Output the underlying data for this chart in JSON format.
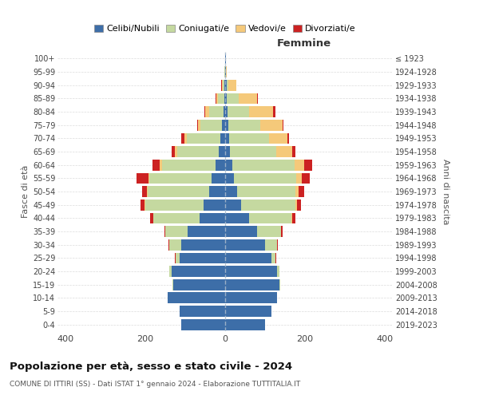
{
  "age_groups": [
    "0-4",
    "5-9",
    "10-14",
    "15-19",
    "20-24",
    "25-29",
    "30-34",
    "35-39",
    "40-44",
    "45-49",
    "50-54",
    "55-59",
    "60-64",
    "65-69",
    "70-74",
    "75-79",
    "80-84",
    "85-89",
    "90-94",
    "95-99",
    "100+"
  ],
  "birth_years": [
    "2019-2023",
    "2014-2018",
    "2009-2013",
    "2004-2008",
    "1999-2003",
    "1994-1998",
    "1989-1993",
    "1984-1988",
    "1979-1983",
    "1974-1978",
    "1969-1973",
    "1964-1968",
    "1959-1963",
    "1954-1958",
    "1949-1953",
    "1944-1948",
    "1939-1943",
    "1934-1938",
    "1929-1933",
    "1924-1928",
    "≤ 1923"
  ],
  "colors": {
    "single": "#3d6ea8",
    "married": "#c5d9a0",
    "widowed": "#f5c97a",
    "divorced": "#cc2222"
  },
  "male": {
    "single": [
      110,
      115,
      145,
      130,
      135,
      115,
      110,
      95,
      65,
      55,
      40,
      35,
      24,
      16,
      12,
      8,
      5,
      3,
      2,
      1,
      1
    ],
    "married": [
      0,
      0,
      0,
      2,
      5,
      10,
      30,
      55,
      115,
      145,
      155,
      155,
      135,
      105,
      85,
      55,
      35,
      15,
      4,
      1,
      0
    ],
    "widowed": [
      0,
      0,
      0,
      0,
      0,
      0,
      0,
      0,
      0,
      2,
      2,
      3,
      5,
      5,
      5,
      5,
      10,
      5,
      2,
      0,
      0
    ],
    "divorced": [
      0,
      0,
      0,
      0,
      0,
      2,
      3,
      2,
      8,
      10,
      12,
      30,
      18,
      8,
      8,
      2,
      3,
      2,
      2,
      0,
      0
    ]
  },
  "female": {
    "single": [
      100,
      115,
      130,
      135,
      130,
      115,
      100,
      80,
      60,
      40,
      30,
      22,
      18,
      12,
      10,
      8,
      5,
      4,
      3,
      1,
      1
    ],
    "married": [
      0,
      0,
      0,
      2,
      5,
      10,
      30,
      60,
      105,
      135,
      145,
      155,
      155,
      115,
      100,
      80,
      55,
      30,
      5,
      0,
      0
    ],
    "widowed": [
      0,
      0,
      0,
      0,
      0,
      0,
      0,
      0,
      2,
      5,
      8,
      15,
      25,
      40,
      45,
      55,
      60,
      45,
      20,
      2,
      0
    ],
    "divorced": [
      0,
      0,
      0,
      0,
      0,
      2,
      2,
      3,
      8,
      10,
      14,
      20,
      20,
      8,
      5,
      3,
      5,
      2,
      0,
      0,
      0
    ]
  },
  "title": "Popolazione per età, sesso e stato civile - 2024",
  "subtitle": "COMUNE DI ITTIRI (SS) - Dati ISTAT 1° gennaio 2024 - Elaborazione TUTTITALIA.IT",
  "xlabel_right": "Femmine",
  "ylabel_left": "Fasce di età",
  "ylabel_right": "Anni di nascita",
  "xlim": 420,
  "background_color": "#ffffff",
  "grid_color": "#cccccc",
  "legend_labels": [
    "Celibi/Nubili",
    "Coniugati/e",
    "Vedovi/e",
    "Divorziati/e"
  ]
}
